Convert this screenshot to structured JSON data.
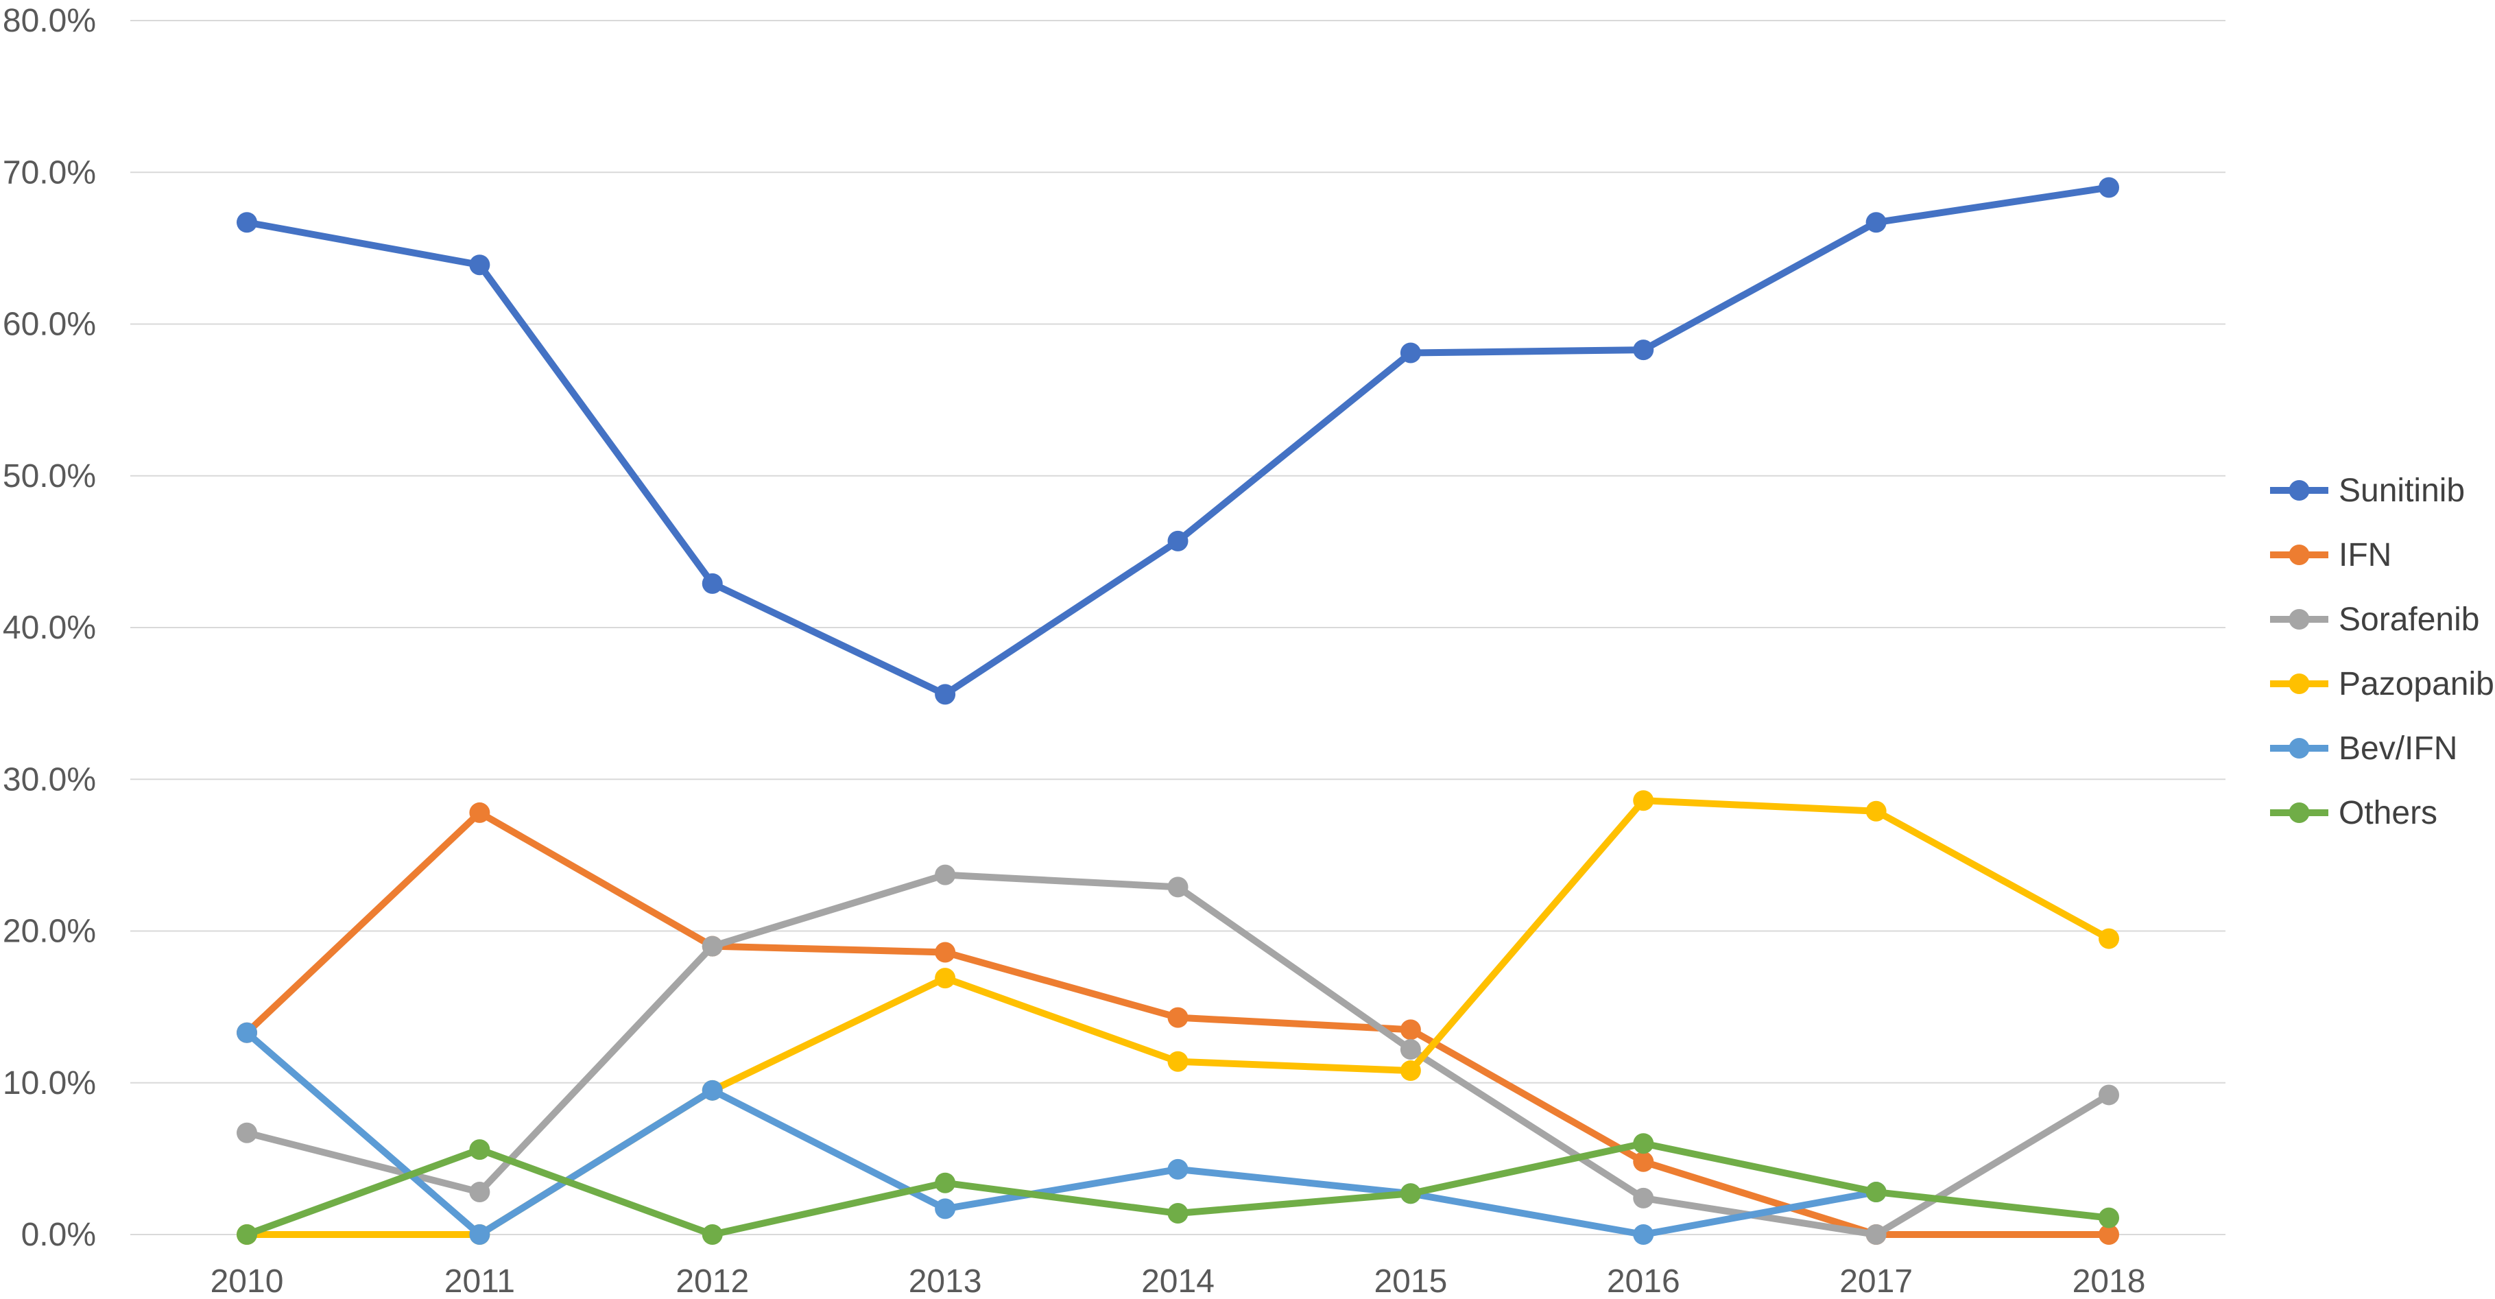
{
  "chart_data": {
    "type": "line",
    "title": "",
    "xlabel": "",
    "ylabel": "",
    "x": [
      "2010",
      "2011",
      "2012",
      "2013",
      "2014",
      "2015",
      "2016",
      "2017",
      "2018"
    ],
    "ylim": [
      0,
      80
    ],
    "y_ticks": [
      "0.0%",
      "10.0%",
      "20.0%",
      "30.0%",
      "40.0%",
      "50.0%",
      "60.0%",
      "70.0%",
      "80.0%"
    ],
    "grid": "horizontal",
    "legend_position": "right",
    "series": [
      {
        "name": "Sunitinib",
        "color": "#4472C4",
        "values": [
          66.7,
          63.9,
          42.9,
          35.6,
          45.7,
          58.1,
          58.3,
          66.7,
          69.0
        ]
      },
      {
        "name": "IFN",
        "color": "#ED7D31",
        "values": [
          13.3,
          27.8,
          19.0,
          18.6,
          14.3,
          13.5,
          4.8,
          0.0,
          0.0
        ]
      },
      {
        "name": "Sorafenib",
        "color": "#A5A5A5",
        "values": [
          6.7,
          2.8,
          19.0,
          23.7,
          22.9,
          12.2,
          2.4,
          0.0,
          9.2
        ]
      },
      {
        "name": "Pazopanib",
        "color": "#FFC000",
        "values": [
          0.0,
          0.0,
          9.5,
          16.9,
          11.4,
          10.8,
          28.6,
          27.9,
          19.5
        ]
      },
      {
        "name": "Bev/IFN",
        "color": "#5B9BD5",
        "values": [
          13.3,
          0.0,
          9.5,
          1.7,
          4.3,
          2.7,
          0.0,
          2.8,
          null
        ]
      },
      {
        "name": "Others",
        "color": "#70AD47",
        "values": [
          0.0,
          5.6,
          0.0,
          3.4,
          1.4,
          2.7,
          6.0,
          2.8,
          1.1
        ]
      }
    ]
  }
}
